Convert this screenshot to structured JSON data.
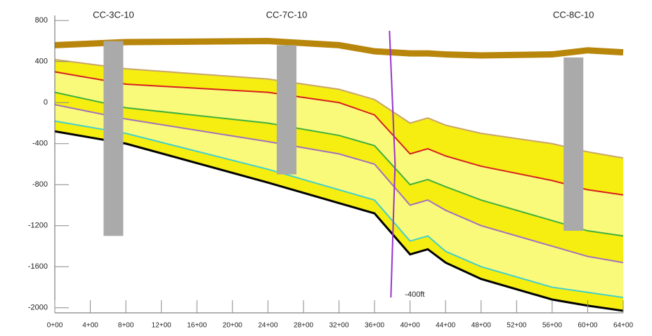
{
  "chart_data": {
    "type": "cross-section",
    "xlim": [
      0,
      6400
    ],
    "ylim": [
      -2050,
      850
    ],
    "xticks": [
      {
        "value": 0,
        "label": "0+00"
      },
      {
        "value": 400,
        "label": "4+00"
      },
      {
        "value": 800,
        "label": "8+00"
      },
      {
        "value": 1200,
        "label": "12+00"
      },
      {
        "value": 1600,
        "label": "16+00"
      },
      {
        "value": 2000,
        "label": "20+00"
      },
      {
        "value": 2400,
        "label": "24+00"
      },
      {
        "value": 2800,
        "label": "28+00"
      },
      {
        "value": 3200,
        "label": "32+00"
      },
      {
        "value": 3600,
        "label": "36+00"
      },
      {
        "value": 4000,
        "label": "40+00"
      },
      {
        "value": 4400,
        "label": "44+00"
      },
      {
        "value": 4800,
        "label": "48+00"
      },
      {
        "value": 5200,
        "label": "52+00"
      },
      {
        "value": 5600,
        "label": "56+00"
      },
      {
        "value": 6000,
        "label": "60+00"
      },
      {
        "value": 6400,
        "label": "64+00"
      }
    ],
    "yticks": [
      800,
      400,
      0,
      -400,
      -800,
      -1200,
      -1600,
      -2000
    ],
    "x": [
      0,
      800,
      2400,
      3200,
      3600,
      4000,
      4200,
      4400,
      4800,
      5600,
      6000,
      6400
    ],
    "series": [
      {
        "color": "#b8860b",
        "values": [
          560,
          590,
          600,
          560,
          500,
          480,
          480,
          470,
          460,
          470,
          510,
          490
        ]
      },
      {
        "color": "#c9a66b",
        "values": [
          420,
          330,
          230,
          130,
          30,
          -200,
          -150,
          -220,
          -300,
          -400,
          -480,
          -540
        ]
      },
      {
        "color": "#d62020",
        "values": [
          300,
          180,
          100,
          0,
          -120,
          -500,
          -450,
          -520,
          -620,
          -760,
          -850,
          -900
        ]
      },
      {
        "color": "#40b040",
        "values": [
          100,
          -50,
          -200,
          -320,
          -420,
          -800,
          -750,
          -820,
          -950,
          -1150,
          -1250,
          -1300
        ]
      },
      {
        "color": "#a070c0",
        "values": [
          -20,
          -160,
          -380,
          -500,
          -600,
          -1000,
          -950,
          -1050,
          -1200,
          -1400,
          -1500,
          -1560
        ]
      },
      {
        "color": "#40d0d0",
        "values": [
          -180,
          -300,
          -650,
          -850,
          -950,
          -1350,
          -1300,
          -1450,
          -1600,
          -1800,
          -1850,
          -1900
        ]
      },
      {
        "color": "#000000",
        "values": [
          -280,
          -400,
          -780,
          -980,
          -1080,
          -1480,
          -1430,
          -1560,
          -1720,
          -1920,
          -1980,
          -2030
        ]
      }
    ],
    "wells": [
      {
        "name": "CC-3C-10",
        "x": 660,
        "top": 600,
        "bottom": -1300
      },
      {
        "name": "CC-7C-10",
        "x": 2610,
        "top": 560,
        "bottom": -700
      },
      {
        "name": "CC-8C-10",
        "x": 5840,
        "top": 440,
        "bottom": -1250
      }
    ],
    "fault": {
      "x": 3800,
      "top": 700,
      "bottom": -1900,
      "label": "-400ft"
    }
  }
}
